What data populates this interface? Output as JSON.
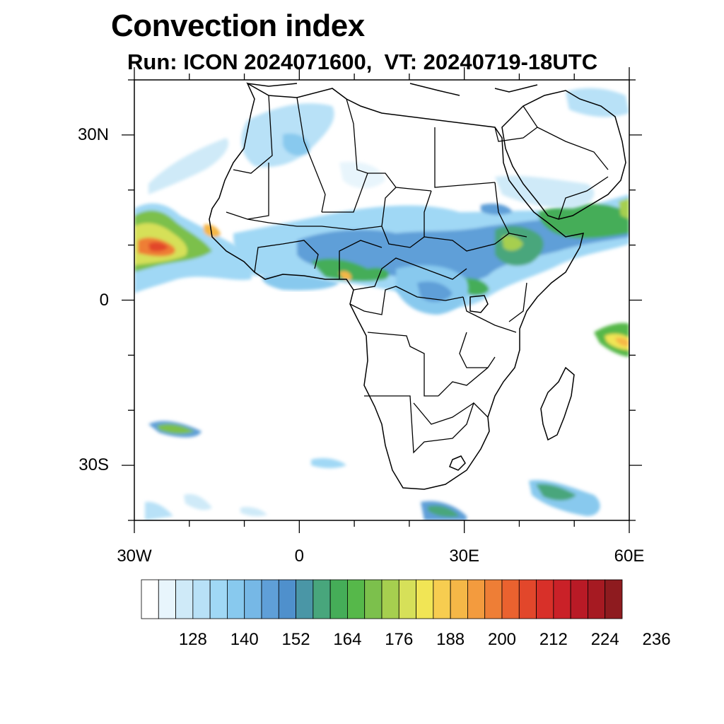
{
  "title": "Convection index",
  "subtitle": "Run: ICON 2024071600,  VT: 20240719-18UTC",
  "axes": {
    "lon_range": [
      -30,
      60
    ],
    "lat_range": [
      -40,
      40
    ],
    "x_ticks": [
      {
        "value": -30,
        "label": "30W"
      },
      {
        "value": 0,
        "label": "0"
      },
      {
        "value": 30,
        "label": "30E"
      },
      {
        "value": 60,
        "label": "60E"
      }
    ],
    "y_ticks": [
      {
        "value": 30,
        "label": "30N"
      },
      {
        "value": 0,
        "label": "0"
      },
      {
        "value": -30,
        "label": "30S"
      }
    ]
  },
  "colorbar": {
    "colors": [
      "#ffffff",
      "#e8f5fc",
      "#cfeaf8",
      "#b8e1f7",
      "#a0d8f5",
      "#88c9ee",
      "#76b8e6",
      "#5f9fd8",
      "#4f90cc",
      "#4a96a6",
      "#48a67c",
      "#45ad58",
      "#56b84a",
      "#7cc04c",
      "#a6cf4f",
      "#d6e059",
      "#f1e555",
      "#f7cd50",
      "#f5b747",
      "#f39b3e",
      "#ee7e36",
      "#ea622f",
      "#e2472b",
      "#d83029",
      "#ca2128",
      "#b91a26",
      "#a61a22",
      "#8e1b1f"
    ],
    "labels": [
      "128",
      "140",
      "152",
      "164",
      "176",
      "188",
      "200",
      "212",
      "224",
      "236"
    ]
  },
  "map_features": {
    "land": "Africa and Arabian Peninsula with country borders",
    "high_values_regions": [
      "Eastern tropical Atlantic off West Africa",
      "Ethiopian Highlands",
      "Western Indian Ocean near Madagascar",
      "Southern Ocean south of Africa"
    ]
  }
}
